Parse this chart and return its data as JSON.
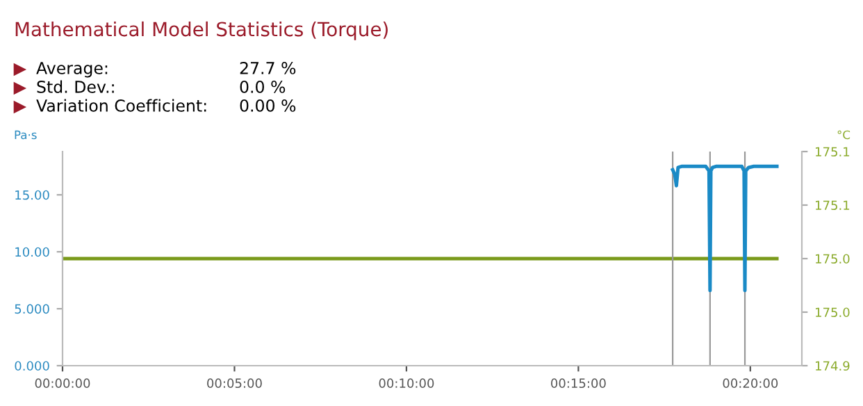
{
  "chart_data": {
    "type": "line",
    "title": "Mathematical Model Statistics (Torque)",
    "annotations": [
      "Average:",
      "27.7 %",
      "Std. Dev.:",
      "0.0 %",
      "Variation Coefficient:",
      "0.00 %"
    ],
    "ylabel": "Pa·s",
    "y2label": "°C",
    "series": [
      {
        "color": "#1a8ac6",
        "x": [
          0.2957,
          0.2967,
          0.2975,
          0.2983,
          0.3,
          0.3117,
          0.3133,
          0.3138,
          0.3142,
          0.315,
          0.3167,
          0.3292,
          0.3303,
          0.3307,
          0.3311,
          0.3325,
          0.335,
          0.3462
        ],
        "values": [
          17.2,
          16.8,
          15.8,
          17.4,
          17.5,
          17.5,
          17.1,
          6.6,
          17.1,
          17.4,
          17.5,
          17.5,
          17.1,
          6.6,
          17.1,
          17.4,
          17.5,
          17.5
        ]
      },
      {
        "color": "#7a9a1a",
        "axis": "y2",
        "x": [
          0,
          0.3462
        ],
        "values": [
          175.02,
          175.02
        ]
      }
    ],
    "xlim": [
      0,
      0.3583
    ],
    "xticks": [
      {
        "value": 0,
        "label": "00:00:00"
      },
      {
        "value": 0.08333,
        "label": "00:05:00"
      },
      {
        "value": 0.16667,
        "label": "00:10:00"
      },
      {
        "value": 0.25,
        "label": "00:15:00"
      },
      {
        "value": 0.33333,
        "label": "00:20:00"
      }
    ],
    "ylim": [
      0,
      18.8
    ],
    "yticks": [
      {
        "value": 0,
        "label": "0.000"
      },
      {
        "value": 5,
        "label": "5.000"
      },
      {
        "value": 10,
        "label": "10.00"
      },
      {
        "value": 15,
        "label": "15.00"
      }
    ],
    "y2lim": [
      174.94,
      175.1
    ],
    "y2ticks": [
      {
        "value": 174.94,
        "label": "174.9"
      },
      {
        "value": 174.98,
        "label": "175.0"
      },
      {
        "value": 175.02,
        "label": "175.0"
      },
      {
        "value": 175.06,
        "label": "175.1"
      },
      {
        "value": 175.1,
        "label": "175.1"
      }
    ],
    "ref_lines": [
      {
        "axis": "x",
        "value": 0.2957,
        "color": "#999999"
      },
      {
        "axis": "x",
        "value": 0.3138,
        "color": "#999999"
      },
      {
        "axis": "x",
        "value": 0.3307,
        "color": "#999999"
      }
    ],
    "grid": false,
    "legend": false,
    "marker": "none",
    "line_style": "solid"
  }
}
